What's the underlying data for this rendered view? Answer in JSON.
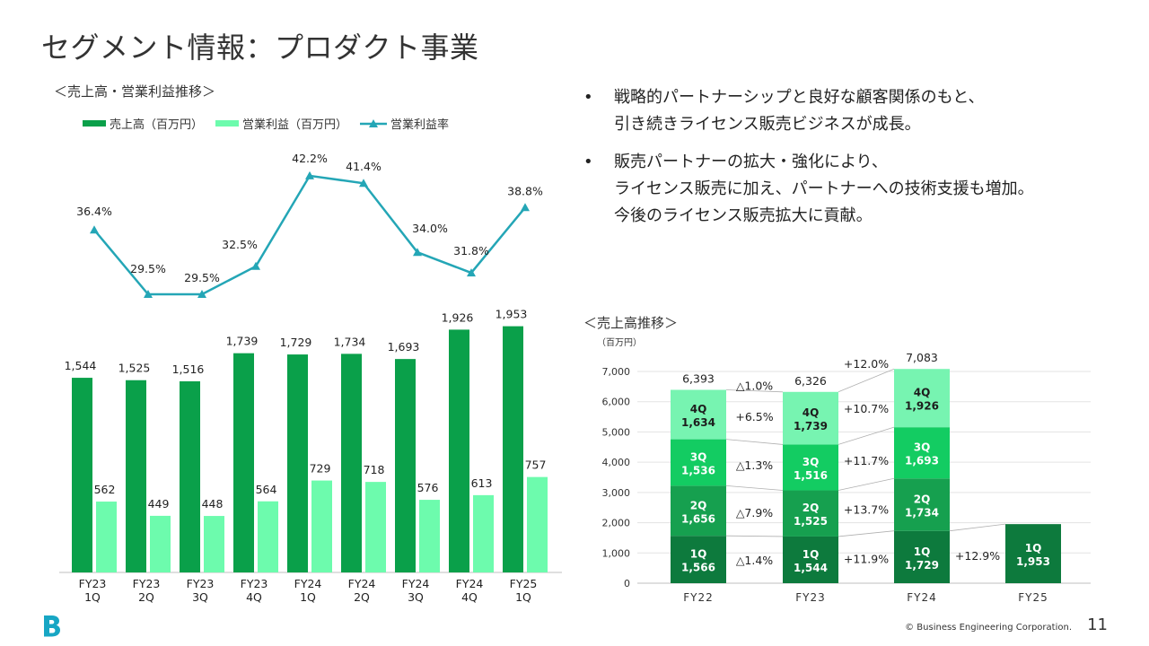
{
  "page": {
    "title": "セグメント情報：プロダクト事業",
    "left_subtitle": "＜売上高・営業利益推移＞",
    "right_subtitle": "＜売上高推移＞",
    "bullets": [
      {
        "lines": [
          "戦略的パートナーシップと良好な顧客関係のもと、",
          "引き続きライセンス販売ビジネスが成長。"
        ]
      },
      {
        "lines": [
          "販売パートナーの拡大・強化により、",
          "ライセンス販売に加え、パートナーへの技術支援も増加。",
          "今後のライセンス販売拡大に貢献。"
        ]
      }
    ],
    "bullet_char": "•",
    "copyright": "© Business Engineering Corporation.",
    "page_number": "11",
    "logo_icon": "b-logo-icon",
    "colors": {
      "dark_green": "#0aa04a",
      "light_green": "#6dfbad",
      "teal": "#24a6b6",
      "q1": "#0d7a3d",
      "q2": "#16a04f",
      "q3": "#13cc62",
      "q4": "#77f4b1"
    }
  },
  "chart_data": [
    {
      "type": "bar",
      "legend": [
        "売上高（百万円）",
        "営業利益（百万円）",
        "営業利益率"
      ],
      "categories": [
        [
          "FY23",
          "1Q"
        ],
        [
          "FY23",
          "2Q"
        ],
        [
          "FY23",
          "3Q"
        ],
        [
          "FY23",
          "4Q"
        ],
        [
          "FY24",
          "1Q"
        ],
        [
          "FY24",
          "2Q"
        ],
        [
          "FY24",
          "3Q"
        ],
        [
          "FY24",
          "4Q"
        ],
        [
          "FY25",
          "1Q"
        ]
      ],
      "series": [
        {
          "name": "売上高（百万円）",
          "type": "bar",
          "values": [
            1544,
            1525,
            1516,
            1739,
            1729,
            1734,
            1693,
            1926,
            1953
          ],
          "labels": [
            "1,544",
            "1,525",
            "1,516",
            "1,739",
            "1,729",
            "1,734",
            "1,693",
            "1,926",
            "1,953"
          ]
        },
        {
          "name": "営業利益（百万円）",
          "type": "bar",
          "values": [
            562,
            449,
            448,
            564,
            729,
            718,
            576,
            613,
            757
          ],
          "labels": [
            "562",
            "449",
            "448",
            "564",
            "729",
            "718",
            "576",
            "613",
            "757"
          ]
        },
        {
          "name": "営業利益率",
          "type": "line",
          "values": [
            36.4,
            29.5,
            29.5,
            32.5,
            42.2,
            41.4,
            34.0,
            31.8,
            38.8
          ],
          "labels": [
            "36.4%",
            "29.5%",
            "29.5%",
            "32.5%",
            "42.2%",
            "41.4%",
            "34.0%",
            "31.8%",
            "38.8%"
          ]
        }
      ]
    },
    {
      "type": "bar",
      "stacked": true,
      "unit": "（百万円）",
      "categories": [
        "FY22",
        "FY23",
        "FY24",
        "FY25"
      ],
      "ylim": [
        0,
        7000
      ],
      "yticks": [
        "0",
        "1,000",
        "2,000",
        "3,000",
        "4,000",
        "5,000",
        "6,000",
        "7,000"
      ],
      "quarters": [
        "1Q",
        "2Q",
        "3Q",
        "4Q"
      ],
      "series": [
        {
          "name": "1Q",
          "values": [
            1566,
            1544,
            1729,
            1953
          ],
          "labels": [
            "1,566",
            "1,544",
            "1,729",
            "1,953"
          ]
        },
        {
          "name": "2Q",
          "values": [
            1656,
            1525,
            1734,
            null
          ],
          "labels": [
            "1,656",
            "1,525",
            "1,734",
            ""
          ]
        },
        {
          "name": "3Q",
          "values": [
            1536,
            1516,
            1693,
            null
          ],
          "labels": [
            "1,536",
            "1,516",
            "1,693",
            ""
          ]
        },
        {
          "name": "4Q",
          "values": [
            1634,
            1739,
            1926,
            null
          ],
          "labels": [
            "1,634",
            "1,739",
            "1,926",
            ""
          ]
        }
      ],
      "totals": [
        "6,393",
        "6,326",
        "7,083",
        ""
      ],
      "changes": [
        {
          "1Q": "△1.4%",
          "2Q": "△7.9%",
          "3Q": "△1.3%",
          "4Q": "+6.5%",
          "total": "△1.0%"
        },
        {
          "1Q": "+11.9%",
          "2Q": "+13.7%",
          "3Q": "+11.7%",
          "4Q": "+10.7%",
          "total": "+12.0%"
        },
        {
          "1Q": "+12.9%"
        }
      ]
    }
  ]
}
